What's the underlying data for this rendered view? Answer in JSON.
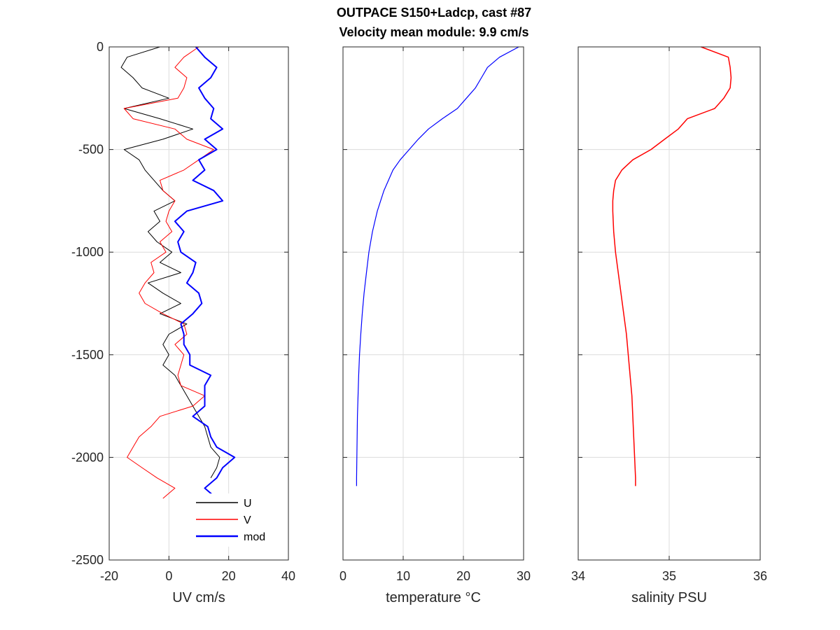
{
  "figure": {
    "title_line1": "OUTPACE S150+Ladcp, cast #87",
    "title_line2": "Velocity mean module:  9.9 cm/s"
  },
  "chart_data": [
    {
      "type": "line",
      "xlabel": "UV cm/s",
      "ylabel": "",
      "xlim": [
        -20,
        40
      ],
      "ylim": [
        -2500,
        0
      ],
      "xticks": [
        -20,
        0,
        20,
        40
      ],
      "yticks": [
        0,
        -500,
        -1000,
        -1500,
        -2000,
        -2500
      ],
      "grid": true,
      "legend": "bottom-right",
      "series": [
        {
          "name": "U",
          "color": "#000000",
          "depth": [
            0,
            -50,
            -100,
            -150,
            -200,
            -250,
            -300,
            -350,
            -400,
            -450,
            -500,
            -550,
            -600,
            -650,
            -700,
            -750,
            -800,
            -850,
            -900,
            -950,
            -1000,
            -1050,
            -1100,
            -1150,
            -1200,
            -1250,
            -1300,
            -1350,
            -1400,
            -1450,
            -1500,
            -1550,
            -1600,
            -1650,
            -1700,
            -1750,
            -1800,
            -1850,
            -1900,
            -1950,
            -2000,
            -2050,
            -2100
          ],
          "values": [
            -3,
            -14,
            -16,
            -12,
            -9,
            0,
            -15,
            -3,
            8,
            -2,
            -15,
            -10,
            -8,
            -5,
            -2,
            2,
            -5,
            -3,
            -7,
            -4,
            1,
            -3,
            4,
            -7,
            -2,
            4,
            -3,
            6,
            0,
            -2,
            0,
            -2,
            2,
            4,
            6,
            8,
            10,
            12,
            13,
            14,
            17,
            16,
            14
          ]
        },
        {
          "name": "V",
          "color": "#ff0000",
          "depth": [
            0,
            -50,
            -100,
            -150,
            -200,
            -250,
            -300,
            -350,
            -400,
            -450,
            -500,
            -550,
            -600,
            -650,
            -700,
            -750,
            -800,
            -850,
            -900,
            -950,
            -1000,
            -1050,
            -1100,
            -1150,
            -1200,
            -1250,
            -1300,
            -1350,
            -1400,
            -1450,
            -1500,
            -1550,
            -1600,
            -1650,
            -1700,
            -1750,
            -1800,
            -1850,
            -1900,
            -1950,
            -2000,
            -2050,
            -2100,
            -2150,
            -2200
          ],
          "values": [
            10,
            5,
            2,
            6,
            5,
            3,
            -15,
            -12,
            2,
            6,
            15,
            10,
            5,
            -3,
            -2,
            2,
            0,
            -1,
            1,
            -3,
            -1,
            -6,
            -5,
            -8,
            -10,
            -8,
            -2,
            5,
            6,
            2,
            5,
            4,
            3,
            4,
            12,
            8,
            -3,
            -6,
            -10,
            -12,
            -14,
            -9,
            -4,
            2,
            -2
          ]
        },
        {
          "name": "mod",
          "color": "#0000ff",
          "depth": [
            0,
            -50,
            -100,
            -150,
            -200,
            -250,
            -300,
            -350,
            -400,
            -450,
            -500,
            -550,
            -600,
            -650,
            -700,
            -750,
            -800,
            -850,
            -900,
            -950,
            -1000,
            -1050,
            -1100,
            -1150,
            -1200,
            -1250,
            -1300,
            -1350,
            -1400,
            -1450,
            -1500,
            -1550,
            -1600,
            -1650,
            -1700,
            -1750,
            -1800,
            -1850,
            -1900,
            -1950,
            -2000,
            -2050,
            -2100,
            -2150,
            -2200
          ],
          "values": [
            9,
            12,
            16,
            14,
            10,
            12,
            15,
            14,
            18,
            12,
            16,
            10,
            12,
            8,
            15,
            18,
            6,
            2,
            5,
            3,
            4,
            9,
            8,
            6,
            10,
            11,
            8,
            4,
            5,
            5,
            7,
            7,
            14,
            12,
            12,
            12,
            8,
            13,
            14,
            16,
            22,
            18,
            16,
            12,
            16
          ]
        }
      ]
    },
    {
      "type": "line",
      "xlabel": "temperature °C",
      "ylabel": "",
      "xlim": [
        0,
        30
      ],
      "ylim": [
        -2500,
        0
      ],
      "xticks": [
        0,
        10,
        20,
        30
      ],
      "grid": true,
      "series": [
        {
          "color": "#0000ff",
          "depth": [
            0,
            -50,
            -100,
            -150,
            -200,
            -250,
            -300,
            -350,
            -400,
            -450,
            -500,
            -550,
            -600,
            -700,
            -800,
            -900,
            -1000,
            -1100,
            -1200,
            -1300,
            -1400,
            -1500,
            -1600,
            -1700,
            -1800,
            -1900,
            -2000,
            -2100,
            -2140
          ],
          "values": [
            29.2,
            26,
            24,
            23,
            22,
            20.5,
            19,
            16.5,
            14.2,
            12.5,
            11,
            9.5,
            8.3,
            6.8,
            5.7,
            4.9,
            4.3,
            3.9,
            3.5,
            3.2,
            2.95,
            2.75,
            2.6,
            2.5,
            2.4,
            2.35,
            2.3,
            2.25,
            2.25
          ]
        }
      ]
    },
    {
      "type": "line",
      "xlabel": "salinity PSU",
      "ylabel": "",
      "xlim": [
        34,
        36
      ],
      "ylim": [
        -2500,
        0
      ],
      "xticks": [
        34,
        35,
        36
      ],
      "grid": true,
      "series": [
        {
          "color": "#ff0000",
          "depth": [
            0,
            -50,
            -100,
            -150,
            -200,
            -250,
            -300,
            -350,
            -400,
            -450,
            -500,
            -550,
            -600,
            -650,
            -700,
            -750,
            -800,
            -900,
            -1000,
            -1100,
            -1200,
            -1300,
            -1400,
            -1500,
            -1600,
            -1700,
            -1800,
            -1900,
            -2000,
            -2100,
            -2140
          ],
          "values": [
            35.35,
            35.65,
            35.67,
            35.68,
            35.67,
            35.6,
            35.5,
            35.2,
            35.1,
            34.95,
            34.8,
            34.6,
            34.48,
            34.41,
            34.39,
            34.38,
            34.38,
            34.39,
            34.41,
            34.44,
            34.47,
            34.5,
            34.53,
            34.55,
            34.57,
            34.59,
            34.6,
            34.61,
            34.62,
            34.63,
            34.63
          ]
        }
      ]
    }
  ]
}
